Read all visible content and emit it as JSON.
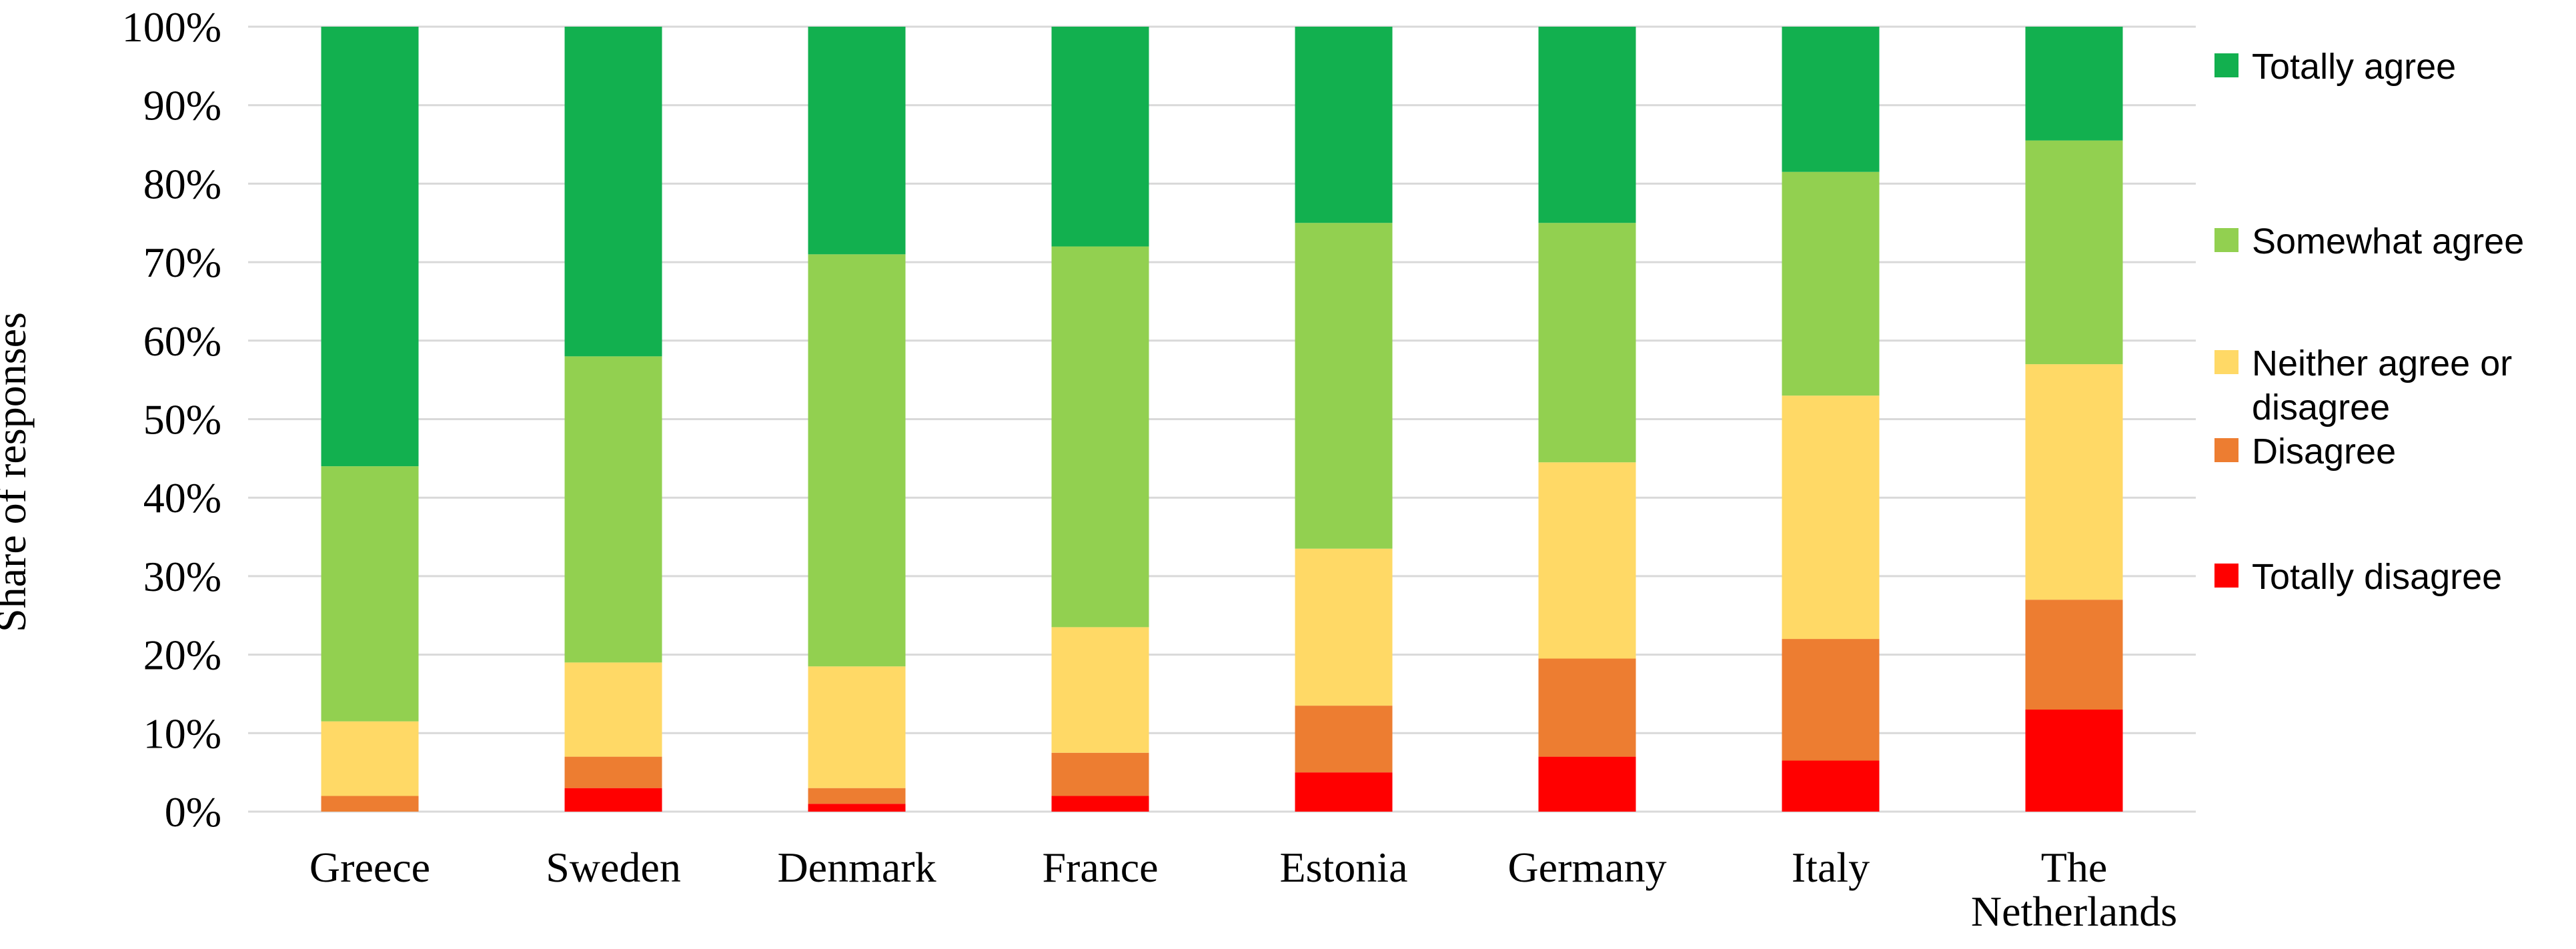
{
  "chart_data": {
    "type": "bar",
    "stacked": true,
    "categories": [
      [
        "Greece"
      ],
      [
        "Sweden"
      ],
      [
        "Denmark"
      ],
      [
        "France"
      ],
      [
        "Estonia"
      ],
      [
        "Germany"
      ],
      [
        "Italy"
      ],
      [
        "The",
        "Netherlands"
      ]
    ],
    "ylabel": "Share of responses",
    "ylim": [
      0,
      100
    ],
    "yticks": [
      0,
      10,
      20,
      30,
      40,
      50,
      60,
      70,
      80,
      90,
      100
    ],
    "ytick_labels": [
      "0%",
      "10%",
      "20%",
      "30%",
      "40%",
      "50%",
      "60%",
      "70%",
      "80%",
      "90%",
      "100%"
    ],
    "grid": "horizontal",
    "legend_position": "right",
    "series": [
      {
        "name": "Totally disagree",
        "color": "#ff0000",
        "values": [
          0,
          3,
          1,
          2,
          5,
          7,
          6.5,
          13
        ]
      },
      {
        "name": "Disagree",
        "color": "#ed7d31",
        "values": [
          2,
          4,
          2,
          5.5,
          8.5,
          12.5,
          15.5,
          14
        ]
      },
      {
        "name": "Neither agree or disagree",
        "color": "#ffd966",
        "values": [
          9.5,
          12,
          15.5,
          16,
          20,
          25,
          31,
          30
        ]
      },
      {
        "name": "Somewhat agree",
        "color": "#92d050",
        "values": [
          32.5,
          39,
          52.5,
          48.5,
          41.5,
          30.5,
          28.5,
          28.5
        ]
      },
      {
        "name": "Totally agree",
        "color": "#12b04f",
        "values": [
          56,
          42,
          29,
          28,
          25,
          25,
          18.5,
          14.5
        ]
      }
    ],
    "legend_order": [
      "Totally agree",
      "Somewhat agree",
      "Neither agree or disagree",
      "Disagree",
      "Totally disagree"
    ],
    "legend_lines": {
      "Totally agree": [
        "Totally agree"
      ],
      "Somewhat agree": [
        "Somewhat agree"
      ],
      "Neither agree or disagree": [
        "Neither agree or",
        "disagree"
      ],
      "Disagree": [
        "Disagree"
      ],
      "Totally disagree": [
        "Totally disagree"
      ]
    }
  }
}
